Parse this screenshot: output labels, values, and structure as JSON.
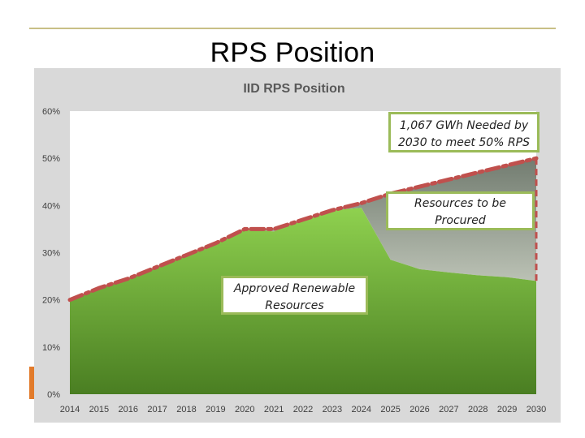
{
  "slide": {
    "title": "RPS Position"
  },
  "chart_data": {
    "type": "area",
    "title": "IID RPS Position",
    "xlabel": "",
    "ylabel": "",
    "x": [
      2014,
      2015,
      2016,
      2017,
      2018,
      2019,
      2020,
      2021,
      2022,
      2023,
      2024,
      2025,
      2026,
      2027,
      2028,
      2029,
      2030
    ],
    "ylim": [
      0,
      60
    ],
    "yticks": [
      "0%",
      "10%",
      "20%",
      "30%",
      "40%",
      "50%",
      "60%"
    ],
    "grid": false,
    "series": [
      {
        "name": "",
        "kind": "area",
        "values": [
          20,
          22.5,
          24.5,
          27,
          29.5,
          32,
          35,
          34.5,
          37,
          39,
          39.5,
          28.5,
          26.5,
          25.8,
          25.2,
          24.8,
          24
        ],
        "color": "#5ea02f"
      },
      {
        "name": "",
        "kind": "target-dashed-line",
        "values": [
          20,
          22.5,
          24.5,
          27,
          29.5,
          32,
          35,
          35,
          37,
          39,
          40.5,
          42.5,
          44,
          45.5,
          47,
          48.5,
          50
        ],
        "color": "#c0504d"
      }
    ],
    "annotations": [
      {
        "id": "needed",
        "lines": [
          "1,067 GWh Needed by",
          "2030  to meet 50% RPS"
        ]
      },
      {
        "id": "procured",
        "lines": [
          "Resources to be",
          "Procured"
        ]
      },
      {
        "id": "approved",
        "lines": [
          "Approved Renewable",
          "Resources"
        ]
      }
    ],
    "colors": {
      "plot_bg": "#ffffff",
      "frame_bg": "#d9d9d9",
      "green_top": "#8fd14f",
      "green_bottom": "#4a7e22",
      "gray_top": "#7d877a",
      "gray_bottom": "#c3c9bd",
      "target_line": "#c0504d",
      "annotation_border": "#9bbb59"
    }
  }
}
